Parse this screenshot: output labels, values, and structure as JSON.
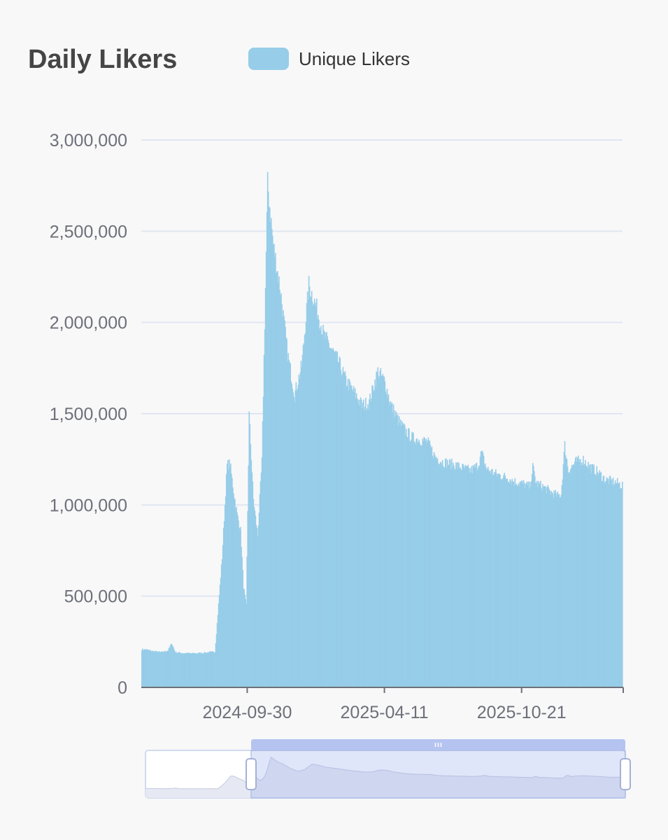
{
  "chart_data": {
    "type": "bar",
    "title": "Daily Likers",
    "series": [
      {
        "name": "Unique Likers",
        "color": "#97cde8",
        "points": [
          [
            "2024-05-10",
            210000
          ],
          [
            "2024-05-20",
            200000
          ],
          [
            "2024-06-01",
            195000
          ],
          [
            "2024-06-10",
            205000
          ],
          [
            "2024-06-15",
            245000
          ],
          [
            "2024-06-20",
            195000
          ],
          [
            "2024-07-01",
            190000
          ],
          [
            "2024-07-15",
            188000
          ],
          [
            "2024-08-01",
            192000
          ],
          [
            "2024-08-15",
            198000
          ],
          [
            "2024-08-25",
            720000
          ],
          [
            "2024-09-01",
            1230000
          ],
          [
            "2024-09-05",
            1240000
          ],
          [
            "2024-09-10",
            1090000
          ],
          [
            "2024-09-15",
            960000
          ],
          [
            "2024-09-20",
            870000
          ],
          [
            "2024-09-24",
            560000
          ],
          [
            "2024-09-28",
            450000
          ],
          [
            "2024-10-02",
            1510000
          ],
          [
            "2024-10-08",
            1040000
          ],
          [
            "2024-10-14",
            840000
          ],
          [
            "2024-10-20",
            1250000
          ],
          [
            "2024-10-28",
            2790000
          ],
          [
            "2024-11-05",
            2450000
          ],
          [
            "2024-11-15",
            2200000
          ],
          [
            "2024-11-25",
            1850000
          ],
          [
            "2024-12-05",
            1620000
          ],
          [
            "2024-12-15",
            1780000
          ],
          [
            "2024-12-25",
            2230000
          ],
          [
            "2025-01-05",
            2100000
          ],
          [
            "2025-01-15",
            1950000
          ],
          [
            "2025-01-25",
            1880000
          ],
          [
            "2025-02-05",
            1800000
          ],
          [
            "2025-02-15",
            1700000
          ],
          [
            "2025-03-01",
            1620000
          ],
          [
            "2025-03-10",
            1560000
          ],
          [
            "2025-03-20",
            1580000
          ],
          [
            "2025-04-01",
            1750000
          ],
          [
            "2025-04-10",
            1700000
          ],
          [
            "2025-04-20",
            1560000
          ],
          [
            "2025-05-01",
            1470000
          ],
          [
            "2025-05-10",
            1420000
          ],
          [
            "2025-05-20",
            1380000
          ],
          [
            "2025-06-01",
            1370000
          ],
          [
            "2025-06-10",
            1360000
          ],
          [
            "2025-06-20",
            1280000
          ],
          [
            "2025-07-01",
            1250000
          ],
          [
            "2025-07-10",
            1240000
          ],
          [
            "2025-07-20",
            1230000
          ],
          [
            "2025-08-01",
            1210000
          ],
          [
            "2025-08-10",
            1200000
          ],
          [
            "2025-08-20",
            1230000
          ],
          [
            "2025-08-25",
            1300000
          ],
          [
            "2025-09-01",
            1210000
          ],
          [
            "2025-09-15",
            1180000
          ],
          [
            "2025-10-01",
            1160000
          ],
          [
            "2025-10-10",
            1140000
          ],
          [
            "2025-10-20",
            1130000
          ],
          [
            "2025-11-01",
            1110000
          ],
          [
            "2025-11-05",
            1220000
          ],
          [
            "2025-11-10",
            1130000
          ],
          [
            "2025-11-20",
            1110000
          ],
          [
            "2025-12-01",
            1080000
          ],
          [
            "2025-12-10",
            1060000
          ],
          [
            "2025-12-15",
            1070000
          ],
          [
            "2025-12-20",
            1340000
          ],
          [
            "2025-12-25",
            1200000
          ],
          [
            "2026-01-05",
            1250000
          ],
          [
            "2026-01-15",
            1260000
          ],
          [
            "2026-01-25",
            1220000
          ],
          [
            "2026-02-05",
            1190000
          ],
          [
            "2026-02-15",
            1150000
          ],
          [
            "2026-02-25",
            1140000
          ],
          [
            "2026-03-05",
            1130000
          ],
          [
            "2026-03-10",
            1120000
          ]
        ]
      }
    ],
    "x_axis": {
      "type": "date",
      "range": [
        "2024-05-04",
        "2026-03-12"
      ],
      "tick_labels": [
        "2024-09-30",
        "2025-04-11",
        "2025-10-21"
      ]
    },
    "y_axis": {
      "ylim": [
        0,
        3000000
      ],
      "tick_values": [
        0,
        500000,
        1000000,
        1500000,
        2000000,
        2500000,
        3000000
      ],
      "tick_labels": [
        "0",
        "500,000",
        "1,000,000",
        "1,500,000",
        "2,000,000",
        "2,500,000",
        "3,000,000"
      ]
    },
    "grid": true,
    "legend": "top",
    "data_zoom": {
      "window": [
        "2024-09-30",
        "2026-03-12"
      ]
    }
  }
}
